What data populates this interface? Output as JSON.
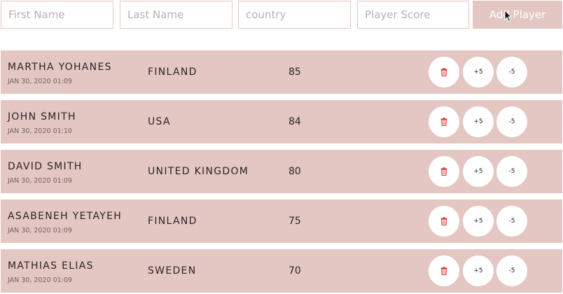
{
  "form": {
    "first_name_placeholder": "First Name",
    "last_name_placeholder": "Last Name",
    "country_placeholder": "country",
    "score_placeholder": "Player Score",
    "add_button_label": "Add Player"
  },
  "players": [
    {
      "name": "MARTHA YOHANES",
      "date": "JAN 30, 2020 01:09",
      "country": "FINLAND",
      "score": "85"
    },
    {
      "name": "JOHN SMITH",
      "date": "JAN 30, 2020 01:10",
      "country": "USA",
      "score": "84"
    },
    {
      "name": "DAVID SMITH",
      "date": "JAN 30, 2020 01:09",
      "country": "UNITED KINGDOM",
      "score": "80"
    },
    {
      "name": "ASABENEH YETAYEH",
      "date": "JAN 30, 2020 01:09",
      "country": "FINLAND",
      "score": "75"
    },
    {
      "name": "MATHIAS ELIAS",
      "date": "JAN 30, 2020 01:09",
      "country": "SWEDEN",
      "score": "70"
    }
  ],
  "actions": {
    "plus_label": "+5",
    "minus_label": "-5",
    "delete_icon": "trash-icon"
  },
  "colors": {
    "row_bg": "#e4c7c3",
    "trash": "#d23b3b"
  }
}
